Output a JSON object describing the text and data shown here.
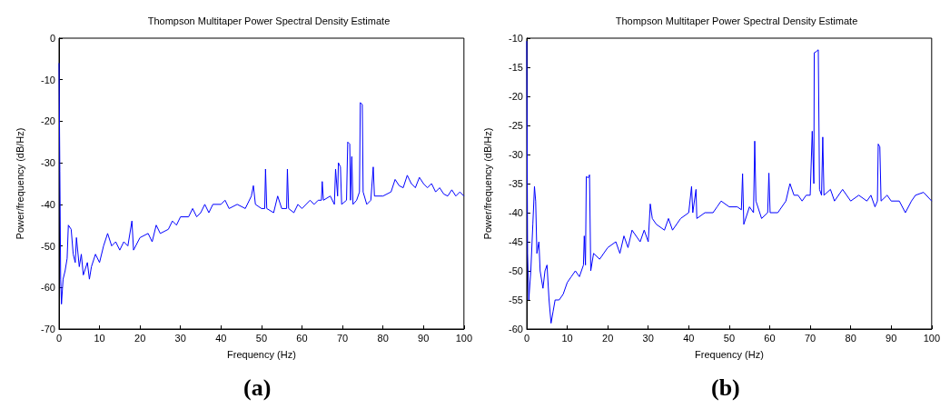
{
  "chart_data": [
    {
      "type": "line",
      "title": "Thompson Multitaper Power Spectral Density Estimate",
      "xlabel": "Frequency (Hz)",
      "ylabel": "Power/frequency (dB/Hz)",
      "annotations": [
        "(a)"
      ],
      "xlim": [
        0,
        100
      ],
      "xticks": [
        0,
        10,
        20,
        30,
        40,
        50,
        60,
        70,
        80,
        90,
        100
      ],
      "ylim": [
        -70,
        0
      ],
      "yticks": [
        -70,
        -60,
        -50,
        -40,
        -30,
        -20,
        -10,
        0
      ],
      "grid": false,
      "marker": "none",
      "line_style": "solid",
      "series": [
        {
          "color": "#0000ff",
          "x": [
            0,
            0.2,
            0.4,
            0.6,
            1,
            1.5,
            2,
            2.3,
            3,
            3.5,
            4,
            4.3,
            5,
            5.5,
            6,
            7,
            7.5,
            8,
            9,
            10,
            11,
            12,
            13,
            14,
            15,
            16,
            17,
            18,
            18.4,
            20,
            22,
            23,
            24,
            25,
            27,
            28,
            29,
            30,
            32,
            33,
            34,
            35,
            36,
            37,
            38,
            40,
            41,
            42,
            44,
            46,
            47.5,
            48,
            48.5,
            50,
            50.8,
            51,
            51.3,
            53,
            54,
            55,
            56.2,
            56.4,
            56.7,
            58,
            59,
            60,
            62,
            63,
            64,
            64.8,
            65,
            65.3,
            67,
            68,
            68.3,
            68.8,
            69,
            69.5,
            69.8,
            71,
            71.3,
            71.8,
            72,
            72.3,
            72.6,
            73.5,
            74.2,
            74.4,
            74.9,
            75.1,
            76,
            77,
            77.6,
            77.9,
            80,
            82,
            83,
            84,
            85,
            86,
            87,
            88,
            89,
            90,
            91,
            92,
            93,
            94,
            95,
            96,
            97,
            98,
            99,
            100
          ],
          "values": [
            -6,
            -32,
            -58,
            -64,
            -58,
            -56,
            -53,
            -45,
            -46,
            -52,
            -54,
            -48,
            -55,
            -52,
            -57,
            -54,
            -58,
            -55,
            -52,
            -54,
            -50,
            -47,
            -50,
            -49,
            -51,
            -49,
            -50,
            -44,
            -51,
            -48,
            -47,
            -49,
            -45,
            -47,
            -46,
            -44,
            -45,
            -43,
            -43,
            -41,
            -43,
            -42,
            -40,
            -42,
            -40,
            -40,
            -39,
            -41,
            -40,
            -41,
            -38,
            -35.5,
            -40,
            -41,
            -41,
            -31.5,
            -41,
            -42,
            -38,
            -41,
            -41,
            -31.5,
            -41,
            -42,
            -40,
            -41,
            -39,
            -40,
            -39,
            -39,
            -34.5,
            -39,
            -38,
            -40,
            -31.5,
            -38,
            -30,
            -31,
            -40,
            -39,
            -25,
            -25.5,
            -39,
            -28.5,
            -40,
            -39,
            -37,
            -15.5,
            -16,
            -37,
            -40,
            -39,
            -31,
            -38,
            -38,
            -37,
            -34,
            -35.5,
            -36,
            -33,
            -35,
            -36,
            -33.5,
            -35,
            -36,
            -35,
            -37,
            -36,
            -37.5,
            -38,
            -36.5,
            -38,
            -37,
            -38
          ]
        }
      ]
    },
    {
      "type": "line",
      "title": "Thompson Multitaper Power Spectral Density Estimate",
      "xlabel": "Frequency (Hz)",
      "ylabel": "Power/frequency (dB/Hz)",
      "annotations": [
        "(b)"
      ],
      "xlim": [
        0,
        100
      ],
      "xticks": [
        0,
        10,
        20,
        30,
        40,
        50,
        60,
        70,
        80,
        90,
        100
      ],
      "ylim": [
        -60,
        -10
      ],
      "yticks": [
        -60,
        -55,
        -50,
        -45,
        -40,
        -35,
        -30,
        -25,
        -20,
        -15,
        -10
      ],
      "grid": false,
      "marker": "none",
      "line_style": "solid",
      "series": [
        {
          "color": "#0000ff",
          "x": [
            0,
            0.2,
            0.5,
            1,
            1.5,
            1.9,
            2.2,
            2.5,
            3,
            3.3,
            4,
            4.5,
            5,
            5.5,
            6,
            6.5,
            7,
            8,
            9,
            10,
            11,
            12,
            13,
            14,
            14.2,
            14.5,
            14.7,
            15.2,
            15.5,
            15.8,
            16.5,
            18,
            20,
            22,
            23,
            24,
            25,
            26,
            28,
            29,
            30,
            30.5,
            31,
            32,
            34,
            35,
            36,
            38,
            40,
            40.7,
            41,
            41.8,
            42,
            44,
            46,
            47,
            48,
            50,
            52,
            53,
            53.3,
            53.6,
            55,
            56,
            56.3,
            56.6,
            58,
            59.5,
            59.8,
            60.1,
            62,
            64,
            65,
            66,
            67,
            68,
            69,
            70,
            70.5,
            70.9,
            71,
            71.5,
            72,
            72.3,
            72.8,
            73.1,
            73.4,
            75,
            76,
            78,
            80,
            82,
            84,
            85,
            86,
            86.6,
            86.8,
            87.2,
            87.5,
            89,
            90,
            92,
            93.5,
            95,
            96,
            98,
            100
          ],
          "values": [
            -10.5,
            -47,
            -55,
            -50,
            -42,
            -35.5,
            -38,
            -47,
            -45,
            -50,
            -53,
            -50,
            -49,
            -55,
            -59,
            -57,
            -55,
            -55,
            -54,
            -52,
            -51,
            -50,
            -51,
            -49,
            -44,
            -49,
            -33.8,
            -34,
            -33.5,
            -50,
            -47,
            -48,
            -46,
            -45,
            -47,
            -44,
            -46,
            -43,
            -45,
            -43,
            -45,
            -38.5,
            -41,
            -42,
            -43,
            -41,
            -43,
            -41,
            -40,
            -35.5,
            -40,
            -36,
            -41,
            -40,
            -40,
            -39,
            -38,
            -39,
            -39,
            -39.5,
            -33.3,
            -42,
            -39,
            -40,
            -27.7,
            -38,
            -41,
            -40,
            -33.2,
            -40,
            -40,
            -38,
            -35,
            -37,
            -37,
            -38,
            -37,
            -37,
            -26,
            -35,
            -12.5,
            -12.3,
            -12,
            -36,
            -37,
            -27,
            -37,
            -36,
            -38,
            -36,
            -38,
            -37,
            -38,
            -37,
            -39,
            -38,
            -28.2,
            -28.7,
            -38,
            -37,
            -38,
            -38,
            -40,
            -38,
            -37,
            -36.5,
            -38
          ]
        }
      ]
    }
  ]
}
